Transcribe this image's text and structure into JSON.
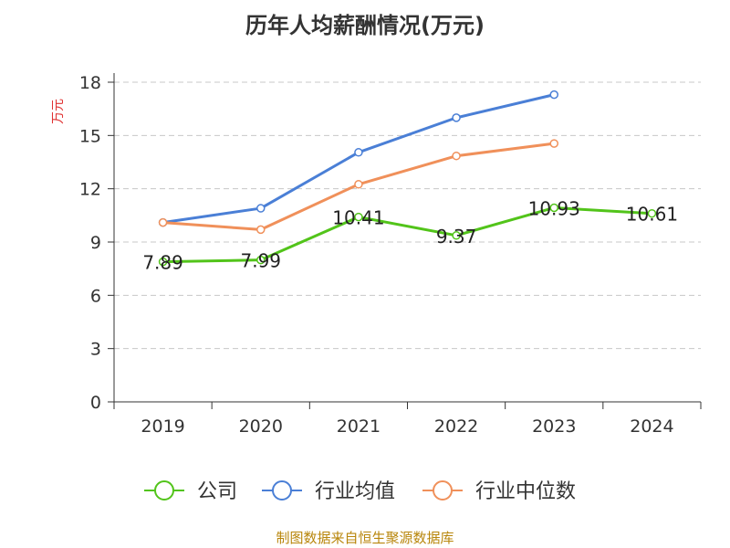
{
  "title": "历年人均薪酬情况(万元)",
  "source_note": "制图数据来自恒生聚源数据库",
  "chart_data": {
    "type": "line",
    "title": "历年人均薪酬情况(万元)",
    "ylabel": "万元",
    "xlabel": "",
    "categories": [
      "2019",
      "2020",
      "2021",
      "2022",
      "2023",
      "2024"
    ],
    "ylim": [
      0,
      18
    ],
    "yticks": [
      0,
      3,
      6,
      9,
      12,
      15,
      18
    ],
    "grid": true,
    "legend_position": "bottom",
    "series": [
      {
        "name": "公司",
        "color": "#52c41a",
        "values": [
          7.89,
          7.99,
          10.41,
          9.37,
          10.93,
          10.61
        ],
        "data_labels": [
          "7.89",
          "7.99",
          "10.41",
          "9.37",
          "10.93",
          "10.61"
        ]
      },
      {
        "name": "行业均值",
        "color": "#4a7fd6",
        "values": [
          10.1,
          10.9,
          14.05,
          16.0,
          17.3,
          null
        ]
      },
      {
        "name": "行业中位数",
        "color": "#f0905a",
        "values": [
          10.1,
          9.7,
          12.25,
          13.85,
          14.55,
          null
        ]
      }
    ]
  }
}
